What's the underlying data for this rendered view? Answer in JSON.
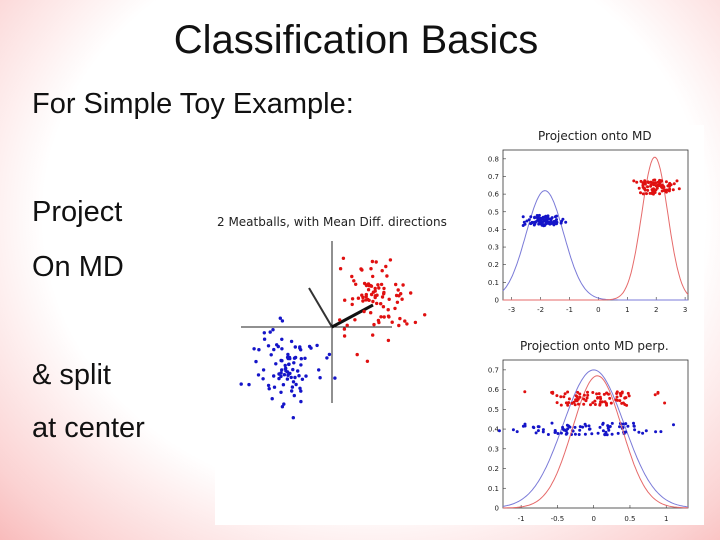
{
  "slide": {
    "title": "Classification Basics",
    "subtitle": "For Simple Toy Example:",
    "body_lines": [
      "Project",
      "On MD",
      "& split",
      "at center"
    ]
  },
  "colors": {
    "class1": "#1414c8",
    "class2": "#e01010",
    "curve_blue": "#7b7bd8",
    "curve_red": "#e66a6a"
  },
  "chart_data": [
    {
      "type": "scatter",
      "title": "2 Meatballs, with Mean Diff. directions",
      "series": [
        {
          "name": "",
          "color": "blue",
          "center": [
            -1.2,
            -1.0
          ],
          "spread": [
            0.45,
            0.55
          ]
        },
        {
          "name": "",
          "color": "red",
          "center": [
            1.2,
            0.8
          ],
          "spread": [
            0.45,
            0.55
          ]
        }
      ],
      "grid": false
    },
    {
      "type": "line",
      "title": "Projection onto MD",
      "xticks": [
        "-3",
        "-2",
        "-1",
        "0",
        "1",
        "2",
        "3"
      ],
      "yticks": [
        "0",
        "0.1",
        "0.2",
        "0.3",
        "0.4",
        "0.5",
        "0.6",
        "0.7",
        "0.8"
      ],
      "xlim": [
        -3.3,
        3.1
      ],
      "ylim": [
        0,
        0.85
      ],
      "series": [
        {
          "name": "",
          "color": "blue",
          "density_mean": -1.85,
          "density_sd": 0.65,
          "density_peak": 0.62,
          "point_x_range": [
            -2.6,
            -1.1
          ],
          "point_y_range": [
            0.42,
            0.48
          ]
        },
        {
          "name": "",
          "color": "red",
          "density_mean": 1.95,
          "density_sd": 0.45,
          "density_peak": 0.81,
          "point_x_range": [
            1.1,
            2.8
          ],
          "point_y_range": [
            0.6,
            0.68
          ]
        }
      ],
      "grid": false
    },
    {
      "type": "line",
      "title": "Projection onto MD perp.",
      "xticks": [
        "-1",
        "-0.5",
        "0",
        "0.5",
        "1"
      ],
      "yticks": [
        "0",
        "0.1",
        "0.2",
        "0.3",
        "0.4",
        "0.5",
        "0.6",
        "0.7"
      ],
      "xlim": [
        -1.25,
        1.3
      ],
      "ylim": [
        0,
        0.75
      ],
      "series": [
        {
          "name": "",
          "color": "blue",
          "density_mean": 0.0,
          "density_sd": 0.42,
          "density_peak": 0.7,
          "point_x_range": [
            -1.3,
            1.1
          ],
          "point_y_range": [
            0.37,
            0.43
          ]
        },
        {
          "name": "",
          "color": "red",
          "density_mean": 0.05,
          "density_sd": 0.34,
          "density_peak": 0.67,
          "point_x_range": [
            -0.95,
            1.0
          ],
          "point_y_range": [
            0.52,
            0.59
          ]
        }
      ],
      "grid": false
    }
  ]
}
